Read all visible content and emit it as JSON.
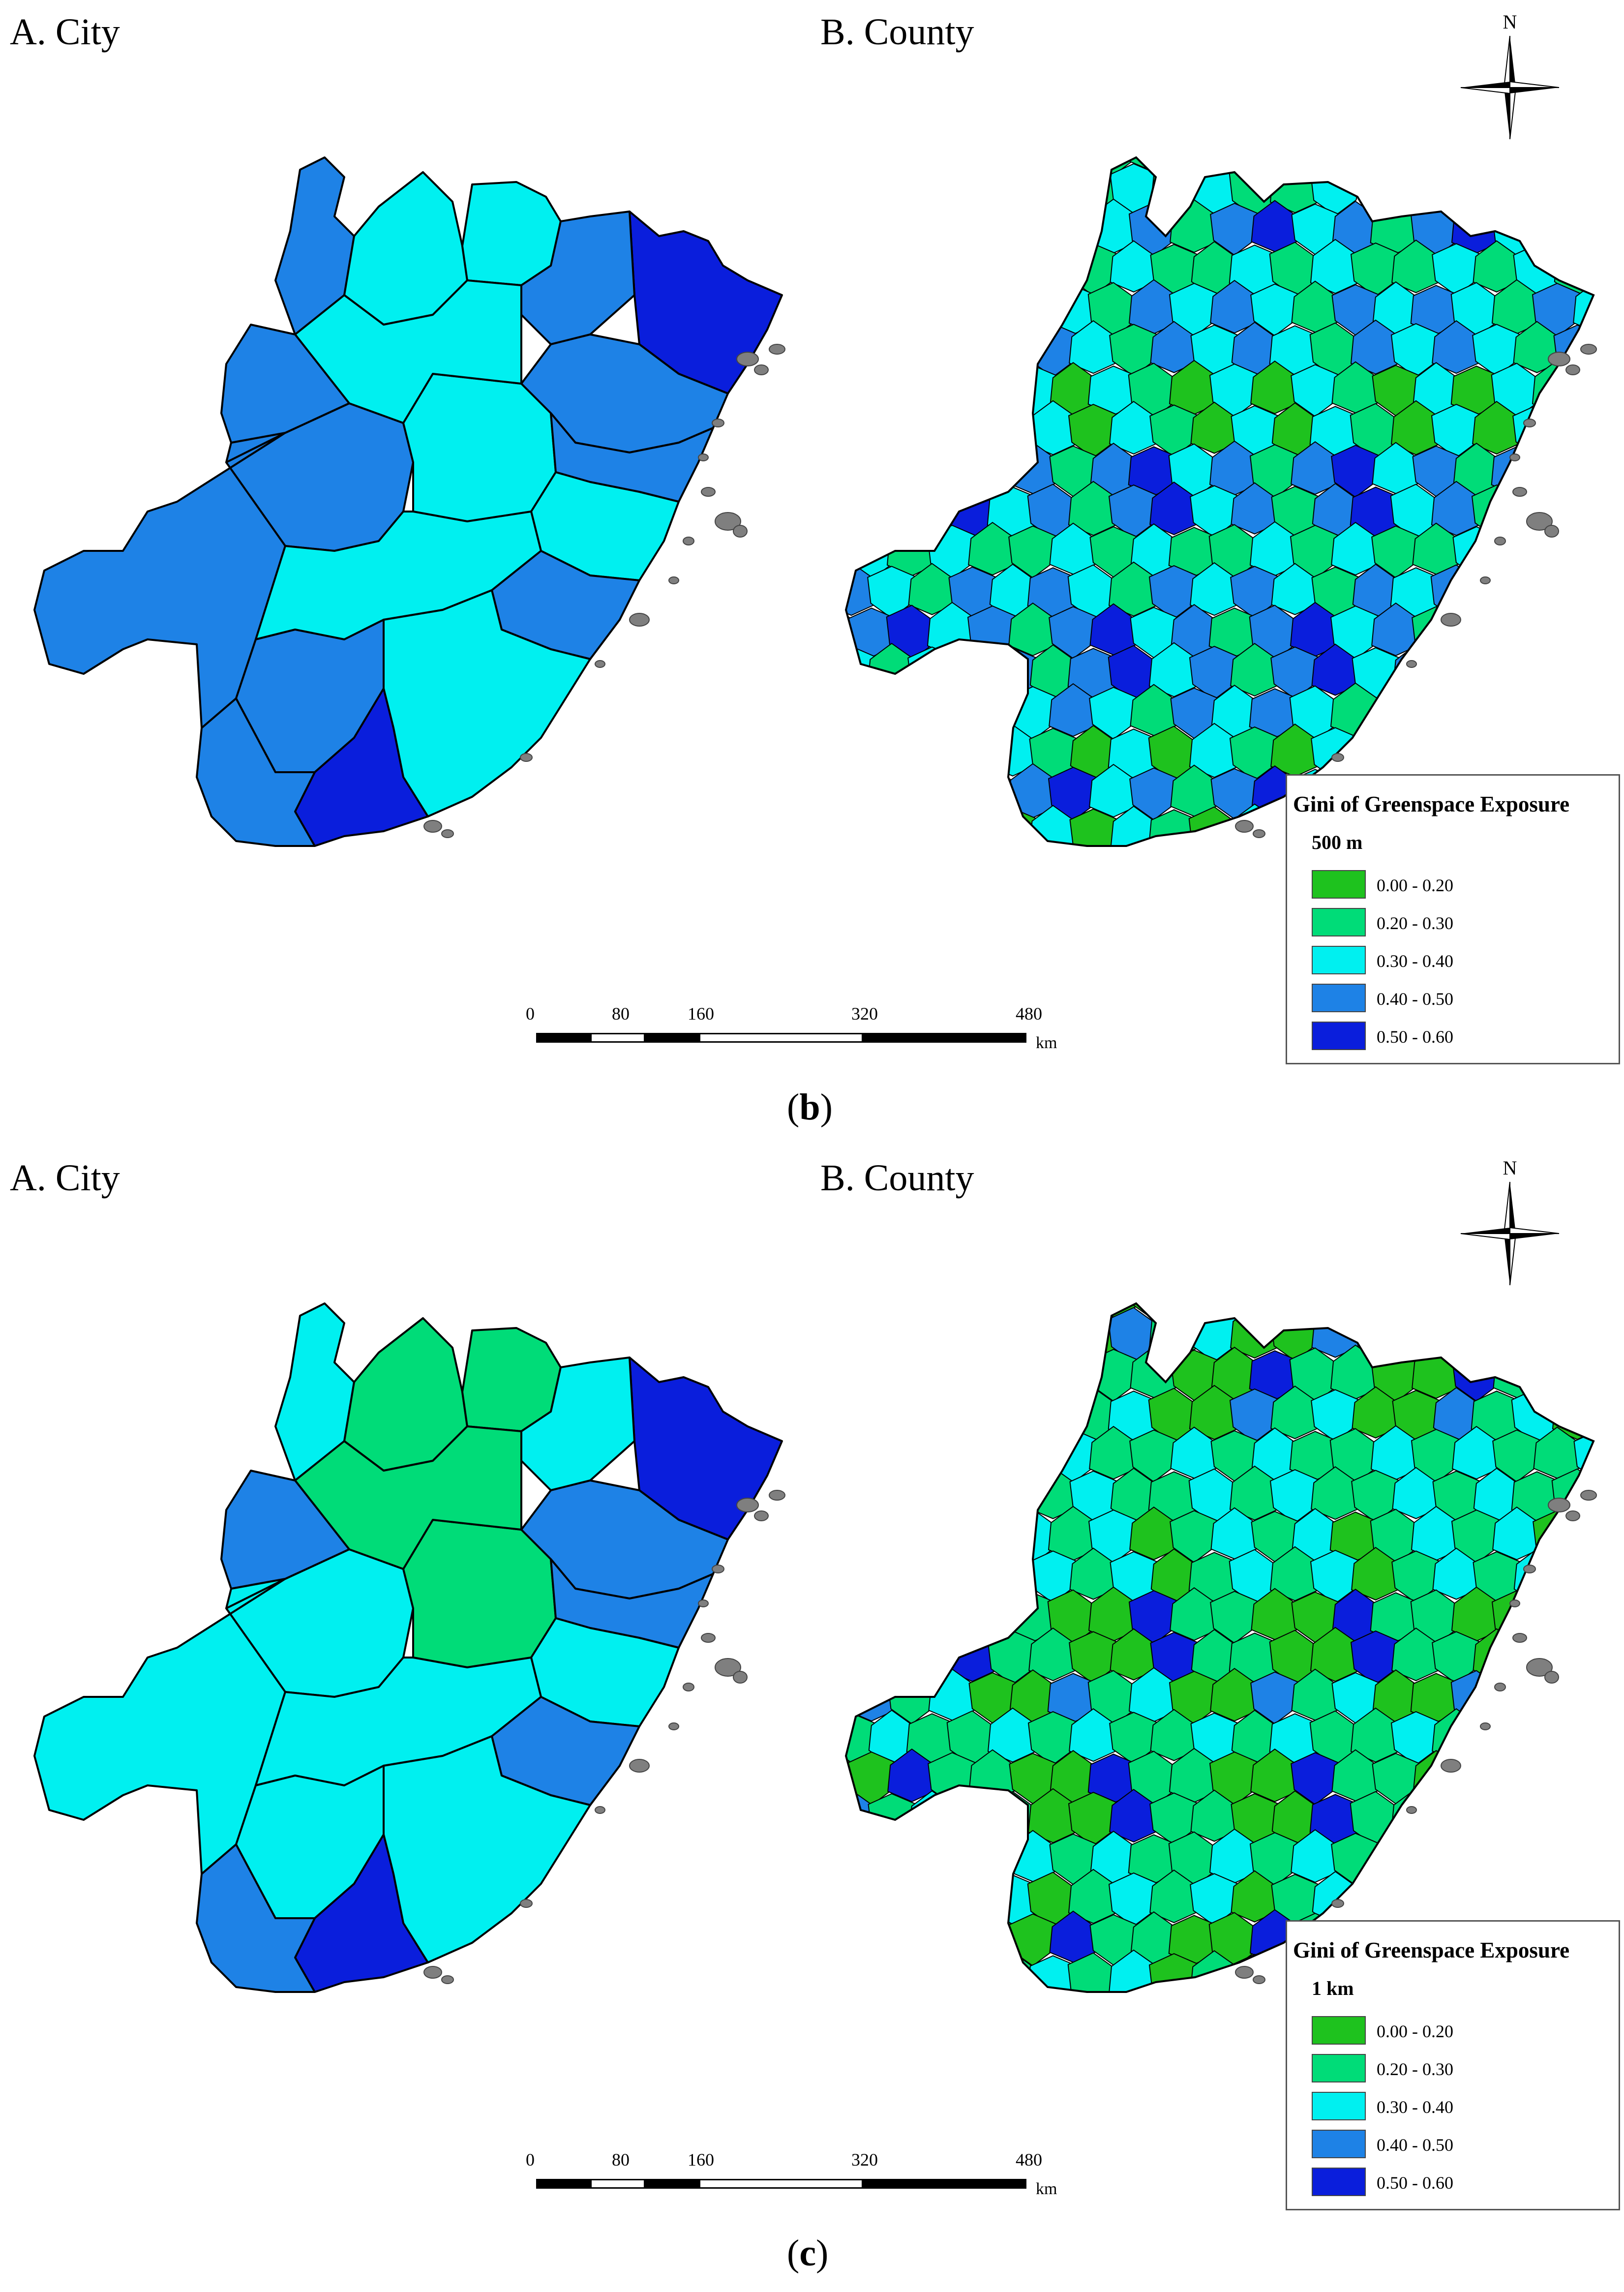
{
  "panels": [
    {
      "id": "b",
      "caption_open": "(",
      "caption_letter": "b",
      "caption_close": ")",
      "city_label": "A. City",
      "county_label": "B. County",
      "north_label": "N",
      "legend": {
        "title": "Gini of Greenspace Exposure",
        "subtitle": "500 m",
        "items": [
          {
            "label": "0.00 - 0.20",
            "color": "#1ec21e"
          },
          {
            "label": "0.20 - 0.30",
            "color": "#00dc78"
          },
          {
            "label": "0.30 - 0.40",
            "color": "#00f0f0"
          },
          {
            "label": "0.40 - 0.50",
            "color": "#1e82e6"
          },
          {
            "label": "0.50 - 0.60",
            "color": "#0a1edc"
          }
        ]
      },
      "scale": {
        "ticks": [
          "0",
          "80",
          "160",
          "320",
          "480"
        ],
        "unit": "km"
      },
      "city_classes": [
        3,
        3,
        2,
        3,
        2,
        2,
        4,
        3,
        2,
        3,
        3,
        3,
        2,
        2,
        3,
        3,
        2,
        4,
        3
      ],
      "county_pattern": [
        2,
        1,
        0,
        2,
        3,
        1,
        2,
        3,
        1,
        2,
        0,
        2,
        3,
        1,
        2,
        1,
        4,
        2,
        1,
        3
      ]
    },
    {
      "id": "c",
      "caption_open": "(",
      "caption_letter": "c",
      "caption_close": ")",
      "city_label": "A. City",
      "county_label": "B. County",
      "north_label": "N",
      "legend": {
        "title": "Gini of Greenspace Exposure",
        "subtitle": "1 km",
        "items": [
          {
            "label": "0.00 - 0.20",
            "color": "#1ec21e"
          },
          {
            "label": "0.20 - 0.30",
            "color": "#00dc78"
          },
          {
            "label": "0.30 - 0.40",
            "color": "#00f0f0"
          },
          {
            "label": "0.40 - 0.50",
            "color": "#1e82e6"
          },
          {
            "label": "0.50 - 0.60",
            "color": "#0a1edc"
          }
        ]
      },
      "scale": {
        "ticks": [
          "0",
          "80",
          "160",
          "320",
          "480"
        ],
        "unit": "km"
      },
      "city_classes": [
        2,
        2,
        1,
        2,
        1,
        1,
        4,
        2,
        1,
        3,
        3,
        3,
        2,
        2,
        3,
        2,
        2,
        4,
        3
      ],
      "county_pattern": [
        1,
        0,
        1,
        2,
        1,
        0,
        2,
        1,
        0,
        3,
        1,
        2,
        0,
        1,
        2,
        1,
        4,
        2,
        0,
        1
      ]
    }
  ]
}
